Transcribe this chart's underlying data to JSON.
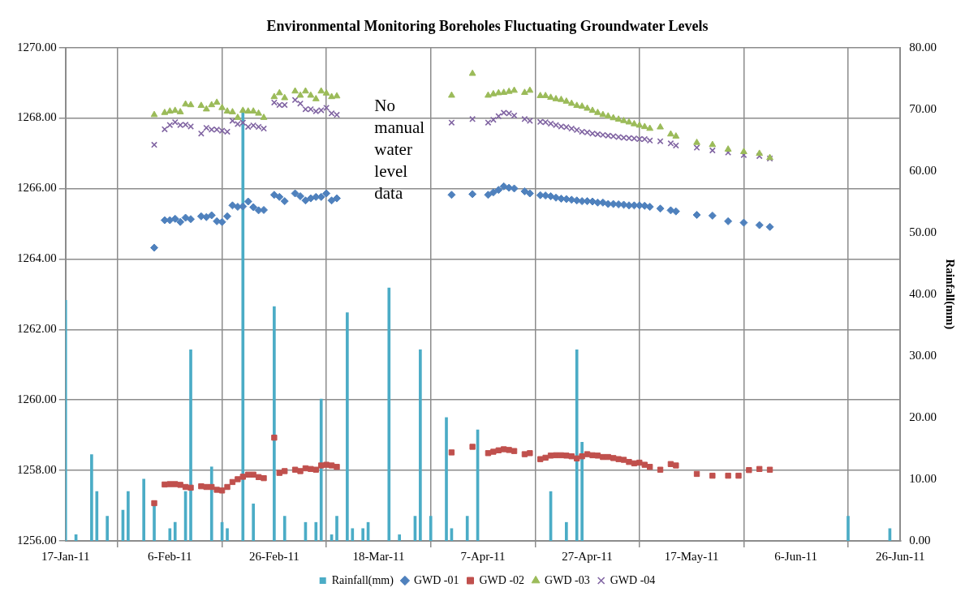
{
  "chart_data": {
    "type": "scatter",
    "title": "Environmental Monitoring Boreholes Fluctuating Groundwater Levels",
    "y2label": "Rainfall(mm)",
    "xlim": [
      "2011-01-17",
      "2011-06-26"
    ],
    "xticks": [
      {
        "value": "2011-01-17",
        "label": "17-Jan-11"
      },
      {
        "value": "2011-02-06",
        "label": "6-Feb-11"
      },
      {
        "value": "2011-02-26",
        "label": "26-Feb-11"
      },
      {
        "value": "2011-03-18",
        "label": "18-Mar-11"
      },
      {
        "value": "2011-04-07",
        "label": "7-Apr-11"
      },
      {
        "value": "2011-04-27",
        "label": "27-Apr-11"
      },
      {
        "value": "2011-05-17",
        "label": "17-May-11"
      },
      {
        "value": "2011-06-06",
        "label": "6-Jun-11"
      },
      {
        "value": "2011-06-26",
        "label": "26-Jun-11"
      }
    ],
    "ylim": [
      1256,
      1270
    ],
    "yticks": [
      {
        "value": 1256,
        "label": "1256.00"
      },
      {
        "value": 1258,
        "label": "1258.00"
      },
      {
        "value": 1260,
        "label": "1260.00"
      },
      {
        "value": 1262,
        "label": "1262.00"
      },
      {
        "value": 1264,
        "label": "1264.00"
      },
      {
        "value": 1266,
        "label": "1266.00"
      },
      {
        "value": 1268,
        "label": "1268.00"
      },
      {
        "value": 1270,
        "label": "1270.00"
      }
    ],
    "y2lim": [
      0,
      80
    ],
    "y2ticks": [
      {
        "value": 0,
        "label": "0.00"
      },
      {
        "value": 10,
        "label": "10.00"
      },
      {
        "value": 20,
        "label": "20.00"
      },
      {
        "value": 30,
        "label": "30.00"
      },
      {
        "value": 40,
        "label": "40.00"
      },
      {
        "value": 50,
        "label": "50.00"
      },
      {
        "value": 60,
        "label": "60.00"
      },
      {
        "value": 70,
        "label": "70.00"
      },
      {
        "value": 80,
        "label": "80.00"
      }
    ],
    "grid": true,
    "legend": "bottom",
    "annotations": [
      "No manual water level data"
    ],
    "series": [
      {
        "name": "Rainfall(mm)",
        "type": "bar",
        "axis": "y2",
        "color": "#4bacc6",
        "x": [
          "2011-01-17",
          "2011-01-19",
          "2011-01-22",
          "2011-01-23",
          "2011-01-25",
          "2011-01-28",
          "2011-01-29",
          "2011-02-01",
          "2011-02-03",
          "2011-02-06",
          "2011-02-07",
          "2011-02-09",
          "2011-02-10",
          "2011-02-14",
          "2011-02-16",
          "2011-02-17",
          "2011-02-20",
          "2011-02-22",
          "2011-02-26",
          "2011-02-28",
          "2011-03-04",
          "2011-03-06",
          "2011-03-07",
          "2011-03-09",
          "2011-03-10",
          "2011-03-12",
          "2011-03-13",
          "2011-03-15",
          "2011-03-16",
          "2011-03-20",
          "2011-03-22",
          "2011-03-25",
          "2011-03-26",
          "2011-03-28",
          "2011-03-31",
          "2011-04-01",
          "2011-04-04",
          "2011-04-06",
          "2011-04-20",
          "2011-04-23",
          "2011-04-25",
          "2011-04-26",
          "2011-06-16",
          "2011-06-24"
        ],
        "values": [
          39,
          1,
          14,
          8,
          4,
          5,
          8,
          10,
          6,
          2,
          3,
          8,
          31,
          12,
          3,
          2,
          70,
          6,
          38,
          4,
          3,
          3,
          23,
          1,
          4,
          37,
          2,
          2,
          3,
          41,
          1,
          4,
          31,
          4,
          20,
          2,
          4,
          18,
          8,
          3,
          31,
          16,
          4,
          2
        ]
      },
      {
        "name": "GWD -01",
        "marker": "diamond",
        "color": "#4f81bd",
        "x": [
          "2011-02-03",
          "2011-02-05",
          "2011-02-06",
          "2011-02-07",
          "2011-02-08",
          "2011-02-09",
          "2011-02-10",
          "2011-02-12",
          "2011-02-13",
          "2011-02-14",
          "2011-02-15",
          "2011-02-16",
          "2011-02-17",
          "2011-02-18",
          "2011-02-19",
          "2011-02-20",
          "2011-02-21",
          "2011-02-22",
          "2011-02-23",
          "2011-02-24",
          "2011-02-26",
          "2011-02-27",
          "2011-02-28",
          "2011-03-02",
          "2011-03-03",
          "2011-03-04",
          "2011-03-05",
          "2011-03-06",
          "2011-03-07",
          "2011-03-08",
          "2011-03-09",
          "2011-03-10",
          "2011-04-01",
          "2011-04-05",
          "2011-04-08",
          "2011-04-09",
          "2011-04-10",
          "2011-04-11",
          "2011-04-12",
          "2011-04-13",
          "2011-04-15",
          "2011-04-16",
          "2011-04-18",
          "2011-04-19",
          "2011-04-20",
          "2011-04-21",
          "2011-04-22",
          "2011-04-23",
          "2011-04-24",
          "2011-04-25",
          "2011-04-26",
          "2011-04-27",
          "2011-04-28",
          "2011-04-29",
          "2011-04-30",
          "2011-05-01",
          "2011-05-02",
          "2011-05-03",
          "2011-05-04",
          "2011-05-05",
          "2011-05-06",
          "2011-05-07",
          "2011-05-08",
          "2011-05-09",
          "2011-05-11",
          "2011-05-13",
          "2011-05-14",
          "2011-05-18",
          "2011-05-21",
          "2011-05-24",
          "2011-05-27",
          "2011-05-30",
          "2011-06-01"
        ],
        "values": [
          1264.32,
          1265.1,
          1265.1,
          1265.14,
          1265.05,
          1265.17,
          1265.13,
          1265.21,
          1265.19,
          1265.24,
          1265.07,
          1265.05,
          1265.21,
          1265.52,
          1265.48,
          1265.49,
          1265.63,
          1265.47,
          1265.38,
          1265.39,
          1265.82,
          1265.76,
          1265.64,
          1265.86,
          1265.78,
          1265.66,
          1265.72,
          1265.76,
          1265.76,
          1265.86,
          1265.66,
          1265.72,
          1265.82,
          1265.84,
          1265.82,
          1265.89,
          1265.96,
          1266.06,
          1266.02,
          1266.0,
          1265.92,
          1265.86,
          1265.81,
          1265.8,
          1265.78,
          1265.74,
          1265.71,
          1265.7,
          1265.68,
          1265.66,
          1265.64,
          1265.64,
          1265.63,
          1265.6,
          1265.6,
          1265.56,
          1265.56,
          1265.55,
          1265.54,
          1265.52,
          1265.52,
          1265.52,
          1265.51,
          1265.48,
          1265.43,
          1265.38,
          1265.35,
          1265.25,
          1265.23,
          1265.07,
          1265.03,
          1264.96,
          1264.91
        ]
      },
      {
        "name": "GWD -02",
        "marker": "square",
        "color": "#c0504d",
        "x": [
          "2011-02-03",
          "2011-02-05",
          "2011-02-06",
          "2011-02-07",
          "2011-02-08",
          "2011-02-09",
          "2011-02-10",
          "2011-02-12",
          "2011-02-13",
          "2011-02-14",
          "2011-02-15",
          "2011-02-16",
          "2011-02-17",
          "2011-02-18",
          "2011-02-19",
          "2011-02-20",
          "2011-02-21",
          "2011-02-22",
          "2011-02-23",
          "2011-02-24",
          "2011-02-26",
          "2011-02-27",
          "2011-02-28",
          "2011-03-02",
          "2011-03-03",
          "2011-03-04",
          "2011-03-05",
          "2011-03-06",
          "2011-03-07",
          "2011-03-08",
          "2011-03-09",
          "2011-03-10",
          "2011-04-01",
          "2011-04-05",
          "2011-04-08",
          "2011-04-09",
          "2011-04-10",
          "2011-04-11",
          "2011-04-12",
          "2011-04-13",
          "2011-04-15",
          "2011-04-16",
          "2011-04-18",
          "2011-04-19",
          "2011-04-20",
          "2011-04-21",
          "2011-04-22",
          "2011-04-23",
          "2011-04-24",
          "2011-04-25",
          "2011-04-26",
          "2011-04-27",
          "2011-04-28",
          "2011-04-29",
          "2011-04-30",
          "2011-05-01",
          "2011-05-02",
          "2011-05-03",
          "2011-05-04",
          "2011-05-05",
          "2011-05-06",
          "2011-05-07",
          "2011-05-08",
          "2011-05-09",
          "2011-05-11",
          "2011-05-13",
          "2011-05-14",
          "2011-05-18",
          "2011-05-21",
          "2011-05-24",
          "2011-05-26",
          "2011-05-28",
          "2011-05-30",
          "2011-06-01"
        ],
        "values": [
          1257.07,
          1257.6,
          1257.61,
          1257.61,
          1257.59,
          1257.53,
          1257.51,
          1257.55,
          1257.53,
          1257.53,
          1257.45,
          1257.43,
          1257.53,
          1257.67,
          1257.75,
          1257.82,
          1257.88,
          1257.88,
          1257.81,
          1257.78,
          1258.93,
          1257.93,
          1257.98,
          1258.02,
          1257.98,
          1258.06,
          1258.04,
          1258.02,
          1258.14,
          1258.16,
          1258.14,
          1258.1,
          1258.51,
          1258.67,
          1258.49,
          1258.53,
          1258.57,
          1258.6,
          1258.58,
          1258.55,
          1258.46,
          1258.49,
          1258.32,
          1258.36,
          1258.42,
          1258.43,
          1258.43,
          1258.42,
          1258.4,
          1258.34,
          1258.4,
          1258.46,
          1258.43,
          1258.42,
          1258.38,
          1258.38,
          1258.35,
          1258.32,
          1258.3,
          1258.24,
          1258.2,
          1258.22,
          1258.16,
          1258.1,
          1258.02,
          1258.18,
          1258.14,
          1257.9,
          1257.85,
          1257.85,
          1257.85,
          1258.01,
          1258.04,
          1258.02
        ]
      },
      {
        "name": "GWD -03",
        "marker": "triangle",
        "color": "#9bbb59",
        "x": [
          "2011-02-03",
          "2011-02-05",
          "2011-02-06",
          "2011-02-07",
          "2011-02-08",
          "2011-02-09",
          "2011-02-10",
          "2011-02-12",
          "2011-02-13",
          "2011-02-14",
          "2011-02-15",
          "2011-02-16",
          "2011-02-17",
          "2011-02-18",
          "2011-02-19",
          "2011-02-20",
          "2011-02-21",
          "2011-02-22",
          "2011-02-23",
          "2011-02-24",
          "2011-02-26",
          "2011-02-27",
          "2011-02-28",
          "2011-03-02",
          "2011-03-03",
          "2011-03-04",
          "2011-03-05",
          "2011-03-06",
          "2011-03-07",
          "2011-03-08",
          "2011-03-09",
          "2011-03-10",
          "2011-04-01",
          "2011-04-05",
          "2011-04-08",
          "2011-04-09",
          "2011-04-10",
          "2011-04-11",
          "2011-04-12",
          "2011-04-13",
          "2011-04-15",
          "2011-04-16",
          "2011-04-18",
          "2011-04-19",
          "2011-04-20",
          "2011-04-21",
          "2011-04-22",
          "2011-04-23",
          "2011-04-24",
          "2011-04-25",
          "2011-04-26",
          "2011-04-27",
          "2011-04-28",
          "2011-04-29",
          "2011-04-30",
          "2011-05-01",
          "2011-05-02",
          "2011-05-03",
          "2011-05-04",
          "2011-05-05",
          "2011-05-06",
          "2011-05-07",
          "2011-05-08",
          "2011-05-09",
          "2011-05-11",
          "2011-05-13",
          "2011-05-14",
          "2011-05-18",
          "2011-05-21",
          "2011-05-24",
          "2011-05-27",
          "2011-05-30",
          "2011-06-01"
        ],
        "values": [
          1268.09,
          1268.15,
          1268.19,
          1268.21,
          1268.17,
          1268.39,
          1268.37,
          1268.35,
          1268.25,
          1268.37,
          1268.44,
          1268.29,
          1268.19,
          1268.17,
          1268.01,
          1268.21,
          1268.19,
          1268.19,
          1268.13,
          1268.01,
          1268.6,
          1268.71,
          1268.57,
          1268.76,
          1268.64,
          1268.76,
          1268.64,
          1268.54,
          1268.76,
          1268.7,
          1268.6,
          1268.62,
          1268.64,
          1269.26,
          1268.64,
          1268.68,
          1268.71,
          1268.72,
          1268.75,
          1268.78,
          1268.72,
          1268.78,
          1268.63,
          1268.63,
          1268.58,
          1268.54,
          1268.52,
          1268.47,
          1268.41,
          1268.35,
          1268.33,
          1268.27,
          1268.21,
          1268.15,
          1268.09,
          1268.05,
          1268.0,
          1267.96,
          1267.92,
          1267.88,
          1267.83,
          1267.79,
          1267.75,
          1267.7,
          1267.74,
          1267.54,
          1267.48,
          1267.3,
          1267.24,
          1267.11,
          1267.04,
          1266.99,
          1266.87
        ]
      },
      {
        "name": "GWD -04",
        "marker": "cross",
        "color": "#8064a2",
        "x": [
          "2011-02-03",
          "2011-02-05",
          "2011-02-06",
          "2011-02-07",
          "2011-02-08",
          "2011-02-09",
          "2011-02-10",
          "2011-02-12",
          "2011-02-13",
          "2011-02-14",
          "2011-02-15",
          "2011-02-16",
          "2011-02-17",
          "2011-02-18",
          "2011-02-19",
          "2011-02-20",
          "2011-02-21",
          "2011-02-22",
          "2011-02-23",
          "2011-02-24",
          "2011-02-26",
          "2011-02-27",
          "2011-02-28",
          "2011-03-02",
          "2011-03-03",
          "2011-03-04",
          "2011-03-05",
          "2011-03-06",
          "2011-03-07",
          "2011-03-08",
          "2011-03-09",
          "2011-03-10",
          "2011-04-01",
          "2011-04-05",
          "2011-04-08",
          "2011-04-09",
          "2011-04-10",
          "2011-04-11",
          "2011-04-12",
          "2011-04-13",
          "2011-04-15",
          "2011-04-16",
          "2011-04-18",
          "2011-04-19",
          "2011-04-20",
          "2011-04-21",
          "2011-04-22",
          "2011-04-23",
          "2011-04-24",
          "2011-04-25",
          "2011-04-26",
          "2011-04-27",
          "2011-04-28",
          "2011-04-29",
          "2011-04-30",
          "2011-05-01",
          "2011-05-02",
          "2011-05-03",
          "2011-05-04",
          "2011-05-05",
          "2011-05-06",
          "2011-05-07",
          "2011-05-08",
          "2011-05-09",
          "2011-05-11",
          "2011-05-13",
          "2011-05-14",
          "2011-05-18",
          "2011-05-21",
          "2011-05-24",
          "2011-05-27",
          "2011-05-30",
          "2011-06-01"
        ],
        "values": [
          1267.24,
          1267.68,
          1267.8,
          1267.88,
          1267.8,
          1267.81,
          1267.76,
          1267.56,
          1267.72,
          1267.67,
          1267.67,
          1267.64,
          1267.61,
          1267.92,
          1267.83,
          1267.87,
          1267.75,
          1267.79,
          1267.75,
          1267.7,
          1268.44,
          1268.37,
          1268.37,
          1268.51,
          1268.41,
          1268.25,
          1268.25,
          1268.19,
          1268.22,
          1268.29,
          1268.13,
          1268.09,
          1267.87,
          1267.97,
          1267.87,
          1267.95,
          1268.05,
          1268.15,
          1268.13,
          1268.07,
          1267.97,
          1267.92,
          1267.89,
          1267.88,
          1267.84,
          1267.8,
          1267.76,
          1267.74,
          1267.7,
          1267.66,
          1267.61,
          1267.59,
          1267.56,
          1267.54,
          1267.52,
          1267.5,
          1267.48,
          1267.46,
          1267.44,
          1267.43,
          1267.42,
          1267.4,
          1267.4,
          1267.36,
          1267.34,
          1267.28,
          1267.22,
          1267.16,
          1267.08,
          1267.02,
          1266.95,
          1266.92,
          1266.85
        ]
      }
    ]
  }
}
